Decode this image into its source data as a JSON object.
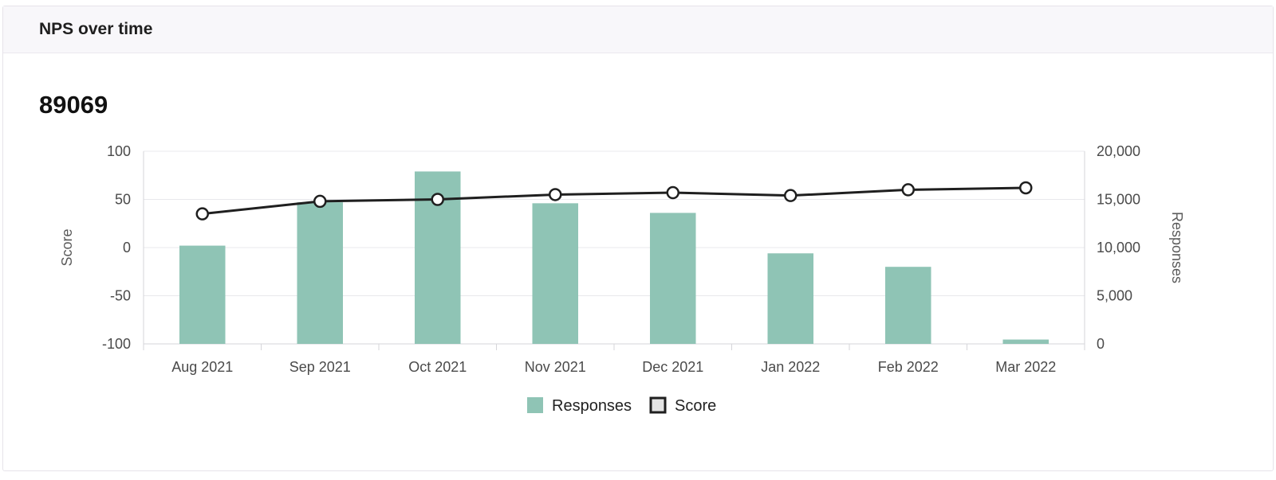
{
  "card": {
    "title": "NPS over time",
    "total": "89069"
  },
  "colors": {
    "bar": "#8fc4b5",
    "line": "#1f1f1f",
    "point_fill": "#ffffff",
    "grid": "#e8e8ec"
  },
  "chart_data": {
    "type": "bar",
    "categories": [
      "Aug 2021",
      "Sep 2021",
      "Oct 2021",
      "Nov 2021",
      "Dec 2021",
      "Jan 2022",
      "Feb 2022",
      "Mar 2022"
    ],
    "series": [
      {
        "name": "Responses",
        "type": "bar",
        "axis": "right",
        "values": [
          10200,
          14700,
          17900,
          14600,
          13600,
          9400,
          8000,
          450
        ]
      },
      {
        "name": "Score",
        "type": "line",
        "axis": "left",
        "values": [
          35,
          48,
          50,
          55,
          57,
          54,
          60,
          62
        ]
      }
    ],
    "y_left": {
      "label": "Score",
      "ylim": [
        -100,
        100
      ],
      "ticks": [
        "100",
        "50",
        "0",
        "-50",
        "-100"
      ]
    },
    "y_right": {
      "label": "Responses",
      "ylim": [
        0,
        20000
      ],
      "ticks": [
        "20,000",
        "15,000",
        "10,000",
        "5,000",
        "0"
      ]
    },
    "legend": {
      "position": "bottom",
      "items": [
        "Responses",
        "Score"
      ]
    },
    "grid": true
  }
}
